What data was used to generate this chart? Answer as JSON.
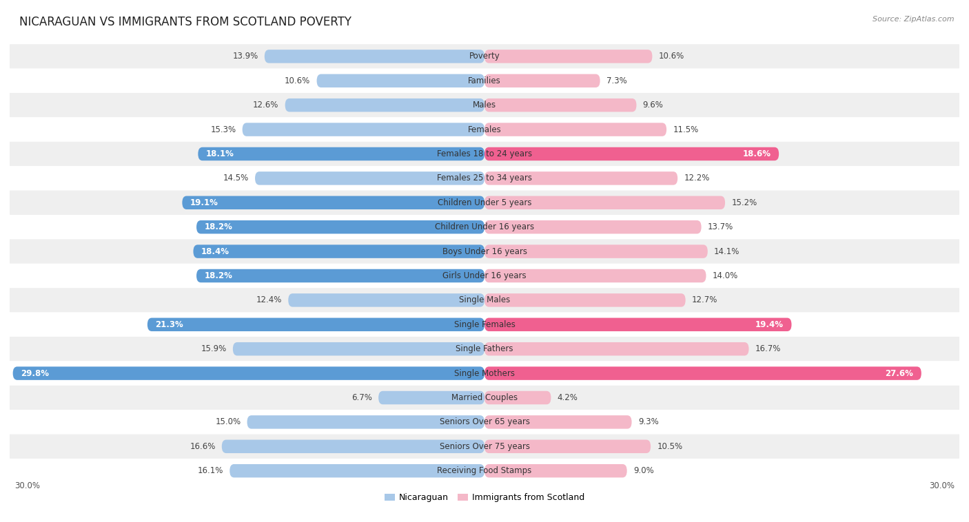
{
  "title": "NICARAGUAN VS IMMIGRANTS FROM SCOTLAND POVERTY",
  "source": "Source: ZipAtlas.com",
  "categories": [
    "Poverty",
    "Families",
    "Males",
    "Females",
    "Females 18 to 24 years",
    "Females 25 to 34 years",
    "Children Under 5 years",
    "Children Under 16 years",
    "Boys Under 16 years",
    "Girls Under 16 years",
    "Single Males",
    "Single Females",
    "Single Fathers",
    "Single Mothers",
    "Married Couples",
    "Seniors Over 65 years",
    "Seniors Over 75 years",
    "Receiving Food Stamps"
  ],
  "nicaraguan": [
    13.9,
    10.6,
    12.6,
    15.3,
    18.1,
    14.5,
    19.1,
    18.2,
    18.4,
    18.2,
    12.4,
    21.3,
    15.9,
    29.8,
    6.7,
    15.0,
    16.6,
    16.1
  ],
  "scotland": [
    10.6,
    7.3,
    9.6,
    11.5,
    18.6,
    12.2,
    15.2,
    13.7,
    14.1,
    14.0,
    12.7,
    19.4,
    16.7,
    27.6,
    4.2,
    9.3,
    10.5,
    9.0
  ],
  "color_nicaraguan_light": "#a8c8e8",
  "color_scotland_light": "#f4b8c8",
  "color_nicaraguan_dark": "#5b9bd5",
  "color_scotland_dark": "#f06090",
  "highlight_nicaraguan": [
    4,
    6,
    7,
    8,
    9,
    11,
    13
  ],
  "highlight_scotland": [
    4,
    11,
    13
  ],
  "bg_odd": "#efefef",
  "bg_even": "#ffffff",
  "axis_max": 30.0,
  "label_fontsize": 8.5,
  "value_fontsize": 8.5,
  "title_fontsize": 12
}
